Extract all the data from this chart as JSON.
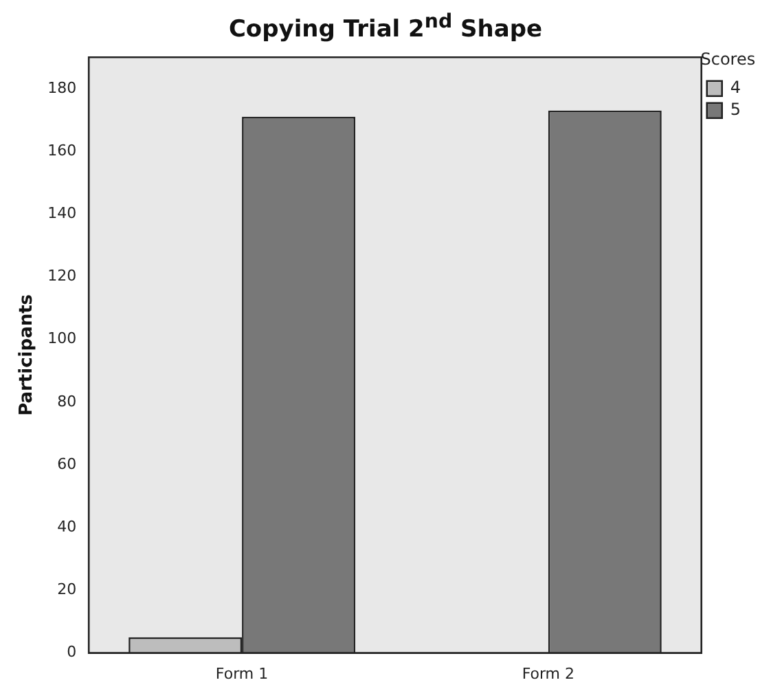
{
  "chart_data": {
    "type": "bar",
    "title": "Copying Trial 2$^{nd}$ Shape",
    "ylabel": "Participants",
    "legend_title": "Scores",
    "categories": [
      "Form 1",
      "Form 2"
    ],
    "series": [
      {
        "name": "4",
        "color": "#bdbdbd",
        "values": [
          5,
          null
        ]
      },
      {
        "name": "5",
        "color": "#787878",
        "values": [
          171,
          173
        ]
      }
    ],
    "ylim": [
      0,
      190
    ],
    "yticks": [
      0,
      20,
      40,
      60,
      80,
      100,
      120,
      140,
      160,
      180
    ],
    "grid": false,
    "legend": "right"
  }
}
